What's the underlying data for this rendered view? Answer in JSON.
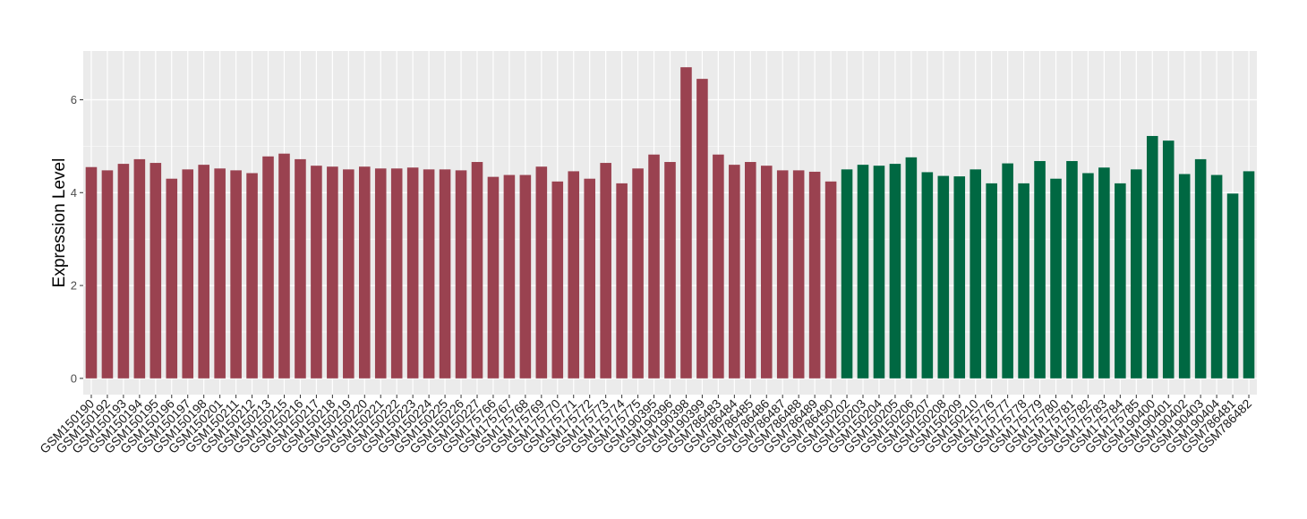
{
  "chart_data": {
    "type": "bar",
    "title": "",
    "xlabel": "",
    "ylabel": "Expression Level",
    "ylim": [
      -0.35,
      7.05
    ],
    "yticks": [
      0,
      2,
      4,
      6
    ],
    "grid": true,
    "legend": "none",
    "colors": {
      "group1": "#9a4250",
      "group2": "#006842",
      "panel": "#ebebeb",
      "gridline": "#ffffff"
    },
    "categories": [
      "GSM150190",
      "GSM150192",
      "GSM150193",
      "GSM150194",
      "GSM150195",
      "GSM150196",
      "GSM150197",
      "GSM150198",
      "GSM150201",
      "GSM150211",
      "GSM150212",
      "GSM150213",
      "GSM150215",
      "GSM150216",
      "GSM150217",
      "GSM150218",
      "GSM150219",
      "GSM150220",
      "GSM150221",
      "GSM150222",
      "GSM150223",
      "GSM150224",
      "GSM150225",
      "GSM150226",
      "GSM150227",
      "GSM175766",
      "GSM175767",
      "GSM175768",
      "GSM175769",
      "GSM175770",
      "GSM175771",
      "GSM175772",
      "GSM175773",
      "GSM175774",
      "GSM175775",
      "GSM190395",
      "GSM190396",
      "GSM190398",
      "GSM190399",
      "GSM786483",
      "GSM786484",
      "GSM786485",
      "GSM786486",
      "GSM786487",
      "GSM786488",
      "GSM786489",
      "GSM786490",
      "GSM150202",
      "GSM150203",
      "GSM150204",
      "GSM150205",
      "GSM150206",
      "GSM150207",
      "GSM150208",
      "GSM150209",
      "GSM150210",
      "GSM175776",
      "GSM175777",
      "GSM175778",
      "GSM175779",
      "GSM175780",
      "GSM175781",
      "GSM175782",
      "GSM175783",
      "GSM175784",
      "GSM175785",
      "GSM190400",
      "GSM190401",
      "GSM190402",
      "GSM190403",
      "GSM190404",
      "GSM786481",
      "GSM786482"
    ],
    "values": [
      4.55,
      4.48,
      4.62,
      4.72,
      4.64,
      4.3,
      4.5,
      4.6,
      4.52,
      4.48,
      4.42,
      4.78,
      4.84,
      4.72,
      4.58,
      4.56,
      4.5,
      4.56,
      4.52,
      4.52,
      4.54,
      4.5,
      4.5,
      4.48,
      4.66,
      4.34,
      4.38,
      4.38,
      4.56,
      4.24,
      4.46,
      4.3,
      4.64,
      4.2,
      4.52,
      4.82,
      4.66,
      6.7,
      6.45,
      4.82,
      4.6,
      4.66,
      4.58,
      4.48,
      4.48,
      4.45,
      4.24,
      4.5,
      4.6,
      4.58,
      4.62,
      4.76,
      4.44,
      4.36,
      4.35,
      4.5,
      4.2,
      4.63,
      4.2,
      4.68,
      4.3,
      4.68,
      4.42,
      4.54,
      4.2,
      4.5,
      5.22,
      5.12,
      4.4,
      4.72,
      4.38,
      3.98,
      4.46
    ],
    "groups": [
      1,
      1,
      1,
      1,
      1,
      1,
      1,
      1,
      1,
      1,
      1,
      1,
      1,
      1,
      1,
      1,
      1,
      1,
      1,
      1,
      1,
      1,
      1,
      1,
      1,
      1,
      1,
      1,
      1,
      1,
      1,
      1,
      1,
      1,
      1,
      1,
      1,
      1,
      1,
      1,
      1,
      1,
      1,
      1,
      1,
      1,
      1,
      2,
      2,
      2,
      2,
      2,
      2,
      2,
      2,
      2,
      2,
      2,
      2,
      2,
      2,
      2,
      2,
      2,
      2,
      2,
      2,
      2,
      2,
      2,
      2,
      2,
      2
    ]
  }
}
